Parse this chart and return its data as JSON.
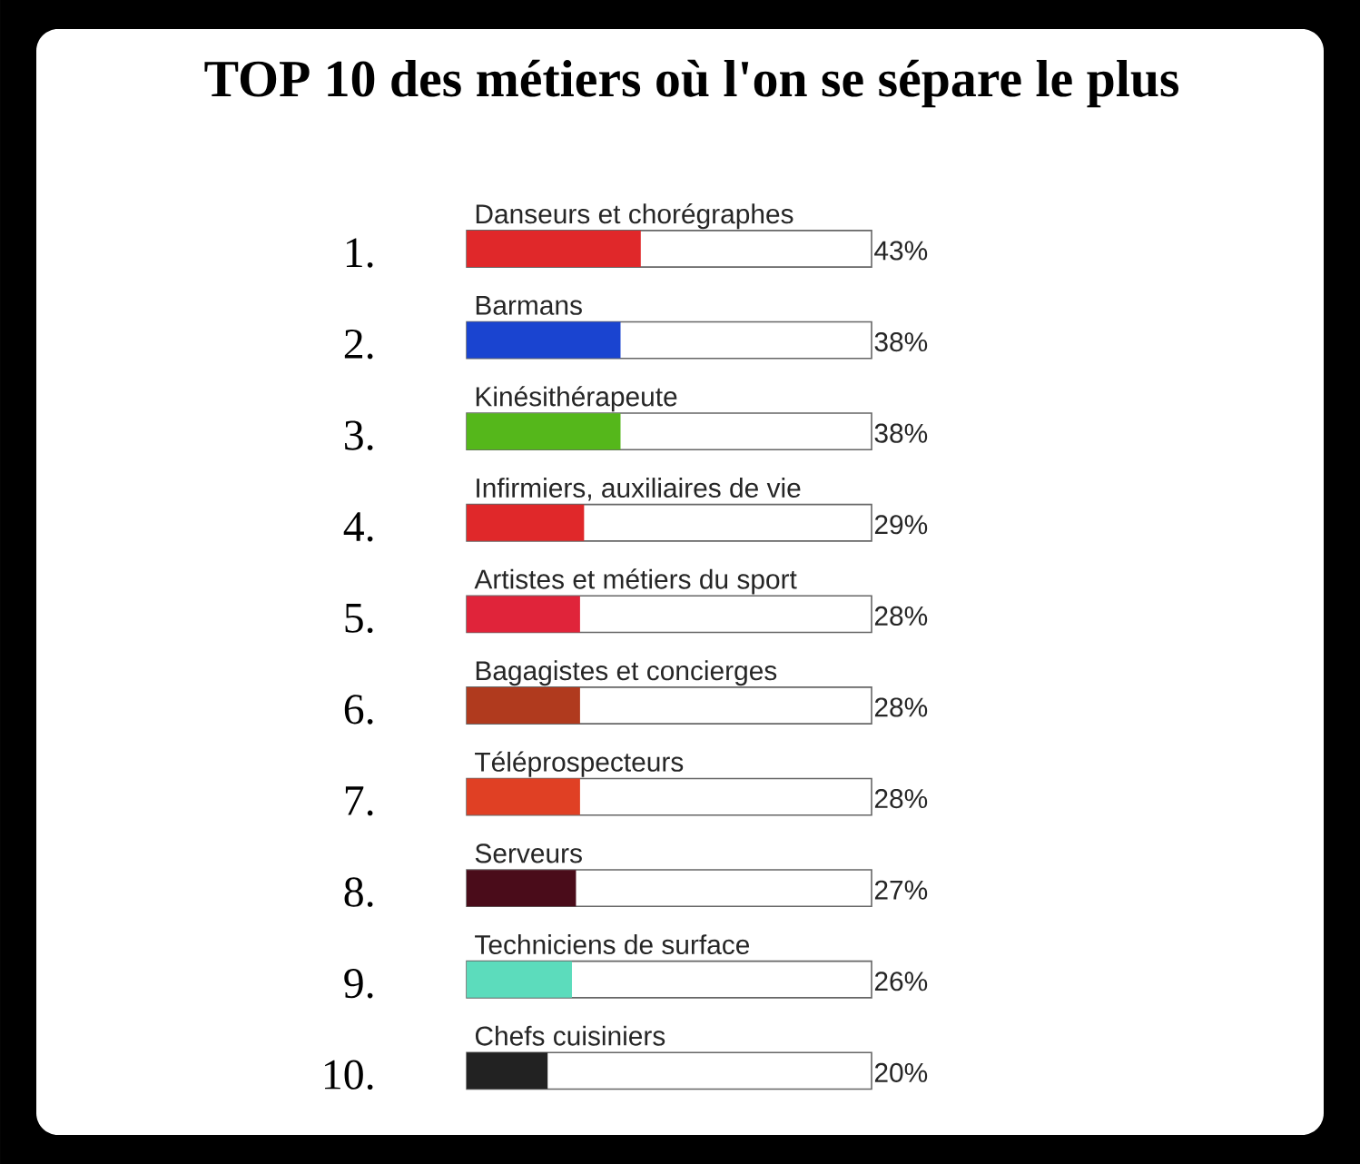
{
  "chart_data": {
    "type": "bar",
    "orientation": "horizontal",
    "title": "TOP 10 des métiers où l'on se sépare le plus",
    "categories": [
      "Danseurs et chorégraphes",
      "Barmans",
      "Kinésithérapeute",
      "Infirmiers, auxiliaires de vie",
      "Artistes et métiers du sport",
      "Bagagistes et concierges",
      "Téléprospecteurs",
      "Serveurs",
      "Techniciens de surface",
      "Chefs cuisiniers"
    ],
    "values": [
      43,
      38,
      38,
      29,
      28,
      28,
      28,
      27,
      26,
      20
    ],
    "value_labels": [
      "43%",
      "38%",
      "38%",
      "29%",
      "28%",
      "28%",
      "28%",
      "27%",
      "26%",
      "20%"
    ],
    "colors": [
      "#e0282a",
      "#1a44d0",
      "#55b71b",
      "#e0282a",
      "#e0243a",
      "#b03a1e",
      "#e04024",
      "#4a0c1a",
      "#5cdcbc",
      "#222222"
    ],
    "annotations": [
      "1.",
      "2.",
      "3.",
      "4.",
      "5.",
      "6.",
      "7.",
      "8.",
      "9.",
      "10."
    ],
    "xlim": [
      0,
      100
    ],
    "tick_labels": false
  }
}
